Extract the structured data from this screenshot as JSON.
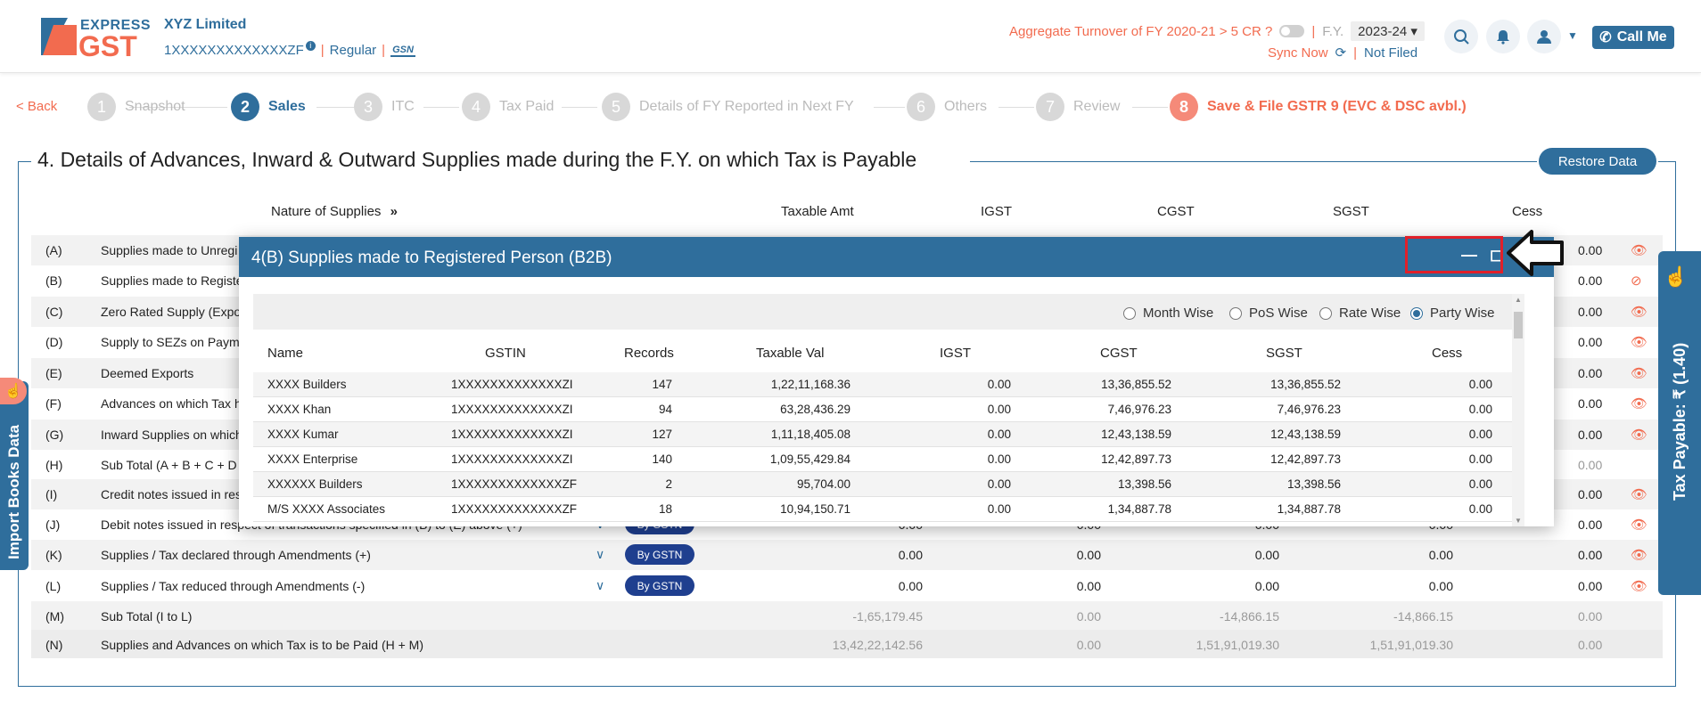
{
  "header": {
    "logo_express": "EXPRESS",
    "logo_gst": "GST",
    "company_name": "XYZ Limited",
    "gstin": "1XXXXXXXXXXXXXZF",
    "info_mark": "i",
    "sep": "|",
    "taxpayer_type": "Regular",
    "gsn_logo": "GSN",
    "turnover_text": "Aggregate Turnover of FY 2020-21 > 5 CR ?",
    "fy_label": "F.Y.",
    "fy_value": "2023-24 ▾",
    "sync_now": "Sync Now",
    "not_filed": "Not Filed",
    "call_me": "Call Me"
  },
  "stepper": {
    "back": "< Back",
    "steps": [
      {
        "num": "1",
        "label": "Snapshot"
      },
      {
        "num": "2",
        "label": "Sales"
      },
      {
        "num": "3",
        "label": "ITC"
      },
      {
        "num": "4",
        "label": "Tax Paid"
      },
      {
        "num": "5",
        "label": "Details of FY Reported in Next FY"
      },
      {
        "num": "6",
        "label": "Others"
      },
      {
        "num": "7",
        "label": "Review"
      },
      {
        "num": "8",
        "label": "Save & File GSTR 9 (EVC & DSC avbl.)"
      }
    ]
  },
  "section": {
    "title": "4. Details of Advances, Inward & Outward Supplies made during the F.Y. on which Tax is Payable",
    "restore_button": "Restore Data",
    "columns": [
      "Nature of Supplies",
      "Taxable Amt",
      "IGST",
      "CGST",
      "SGST",
      "Cess"
    ],
    "rows": [
      {
        "lbl": "(A)",
        "desc": "Supplies made to Unregi",
        "cess": "0.00"
      },
      {
        "lbl": "(B)",
        "desc": "Supplies made to Registe",
        "cess": "0.00"
      },
      {
        "lbl": "(C)",
        "desc": "Zero Rated Supply (Expo",
        "cess": "0.00"
      },
      {
        "lbl": "(D)",
        "desc": "Supply to SEZs on Payme",
        "cess": "0.00"
      },
      {
        "lbl": "(E)",
        "desc": "Deemed Exports",
        "cess": "0.00"
      },
      {
        "lbl": "(F)",
        "desc": "Advances on which Tax h",
        "cess": "0.00"
      },
      {
        "lbl": "(G)",
        "desc": "Inward Supplies on which",
        "cess": "0.00"
      },
      {
        "lbl": "(H)",
        "desc": "Sub Total (A + B + C + D",
        "cess": "0.00"
      },
      {
        "lbl": "(I)",
        "desc": "Credit notes issued in res",
        "cess": "0.00"
      },
      {
        "lbl": "(J)",
        "desc": "Debit notes issued in respect of transactions specified in (B) to (E) above (+)",
        "taxable": "0.00",
        "igst": "0.00",
        "cgst": "0.00",
        "sgst": "0.00",
        "cess": "0.00",
        "gstn": "By GSTN"
      },
      {
        "lbl": "(K)",
        "desc": "Supplies / Tax declared through Amendments (+)",
        "taxable": "0.00",
        "igst": "0.00",
        "cgst": "0.00",
        "sgst": "0.00",
        "cess": "0.00",
        "gstn": "By GSTN"
      },
      {
        "lbl": "(L)",
        "desc": "Supplies / Tax reduced through Amendments (-)",
        "taxable": "0.00",
        "igst": "0.00",
        "cgst": "0.00",
        "sgst": "0.00",
        "cess": "0.00",
        "gstn": "By GSTN"
      },
      {
        "lbl": "(M)",
        "desc": "Sub Total (I to L)",
        "taxable": "-1,65,179.45",
        "igst": "0.00",
        "cgst": "-14,866.15",
        "sgst": "-14,866.15",
        "cess": "0.00"
      },
      {
        "lbl": "(N)",
        "desc": "Supplies and Advances on which Tax is to be Paid (H + M)",
        "taxable": "13,42,22,142.56",
        "igst": "0.00",
        "cgst": "1,51,91,019.30",
        "sgst": "1,51,91,019.30",
        "cess": "0.00"
      }
    ]
  },
  "side_tabs": {
    "import_books": "Import Books Data",
    "tax_payable": "Tax Payable: ₹ (1.40)"
  },
  "modal": {
    "title": "4(B) Supplies made to Registered Person (B2B)",
    "radios": [
      "Month Wise",
      "PoS Wise",
      "Rate Wise",
      "Party Wise"
    ],
    "selected_radio": "Party Wise",
    "columns": [
      "Name",
      "GSTIN",
      "Records",
      "Taxable Val",
      "IGST",
      "CGST",
      "SGST",
      "Cess"
    ],
    "rows": [
      {
        "name": "XXXX Builders",
        "gstin": "1XXXXXXXXXXXXXZI",
        "records": "147",
        "taxable": "1,22,11,168.36",
        "igst": "0.00",
        "cgst": "13,36,855.52",
        "sgst": "13,36,855.52",
        "cess": "0.00"
      },
      {
        "name": "XXXX Khan",
        "gstin": "1XXXXXXXXXXXXXZI",
        "records": "94",
        "taxable": "63,28,436.29",
        "igst": "0.00",
        "cgst": "7,46,976.23",
        "sgst": "7,46,976.23",
        "cess": "0.00"
      },
      {
        "name": "XXXX Kumar",
        "gstin": "1XXXXXXXXXXXXXZI",
        "records": "127",
        "taxable": "1,11,18,405.08",
        "igst": "0.00",
        "cgst": "12,43,138.59",
        "sgst": "12,43,138.59",
        "cess": "0.00"
      },
      {
        "name": "XXXX Enterprise",
        "gstin": "1XXXXXXXXXXXXXZI",
        "records": "140",
        "taxable": "1,09,55,429.84",
        "igst": "0.00",
        "cgst": "12,42,897.73",
        "sgst": "12,42,897.73",
        "cess": "0.00"
      },
      {
        "name": "XXXXXX Builders",
        "gstin": "1XXXXXXXXXXXXXZF",
        "records": "2",
        "taxable": "95,704.00",
        "igst": "0.00",
        "cgst": "13,398.56",
        "sgst": "13,398.56",
        "cess": "0.00"
      },
      {
        "name": "M/S XXXX Associates",
        "gstin": "1XXXXXXXXXXXXXZF",
        "records": "18",
        "taxable": "10,94,150.71",
        "igst": "0.00",
        "cgst": "1,34,887.78",
        "sgst": "1,34,887.78",
        "cess": "0.00"
      }
    ]
  },
  "colors": {
    "primary": "#2f6e9c",
    "accent": "#f26b4f",
    "highlight": "#e0202a"
  }
}
